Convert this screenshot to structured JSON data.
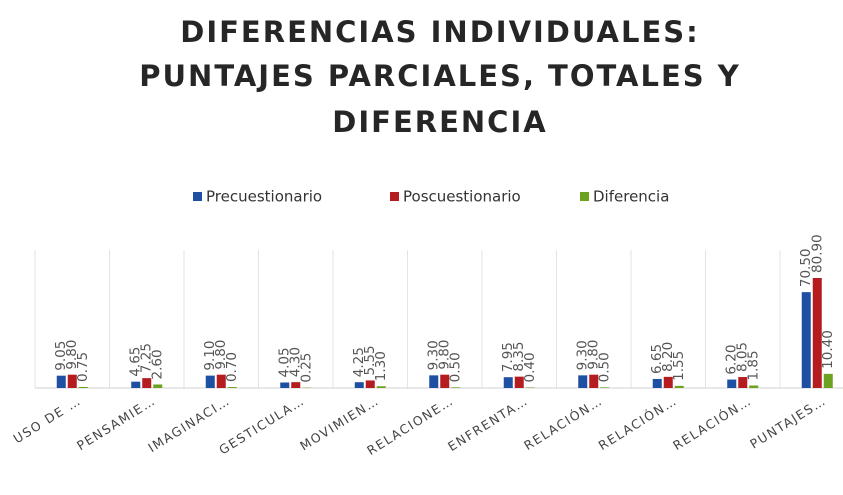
{
  "chart_data": {
    "type": "bar",
    "title": [
      "DIFERENCIAS INDIVIDUALES:",
      "PUNTAJES PARCIALES, TOTALES Y",
      "DIFERENCIA"
    ],
    "categories": [
      "USO DE …",
      "PENSAMIE…",
      "IMAGINACI…",
      "GESTICULA…",
      "MOVIMIEN…",
      "RELACIONE…",
      "ENFRENTA…",
      "RELACIÓN…",
      "RELACIÓN…",
      "RELACIÓN…",
      "PUNTAJES…"
    ],
    "series": [
      {
        "name": "Precuestionario",
        "color": "#1d4fa3",
        "values": [
          9.05,
          4.65,
          9.1,
          4.05,
          4.25,
          9.3,
          7.95,
          9.3,
          6.65,
          6.2,
          70.5
        ],
        "value_labels": [
          "9.05",
          "4.65",
          "9.10",
          "4.05",
          "4.25",
          "9.30",
          "7.95",
          "9.30",
          "6.65",
          "6.20",
          "70.50"
        ]
      },
      {
        "name": "Poscuestionario",
        "color": "#b51c1f",
        "values": [
          9.8,
          7.25,
          9.8,
          4.3,
          5.55,
          9.8,
          8.35,
          9.8,
          8.2,
          8.05,
          80.9
        ],
        "value_labels": [
          "9.80",
          "7.25",
          "9.80",
          "4.30",
          "5.55",
          "9.80",
          "8.35",
          "9.80",
          "8.20",
          "8.05",
          "80.90"
        ]
      },
      {
        "name": "Diferencia",
        "color": "#6ca21f",
        "values": [
          0.75,
          2.6,
          0.7,
          0.25,
          1.3,
          0.5,
          0.4,
          0.5,
          1.55,
          1.85,
          10.4
        ],
        "value_labels": [
          "0.75",
          "2.60",
          "0.70",
          "0.25",
          "1.30",
          "0.50",
          "0.40",
          "0.50",
          "1.55",
          "1.85",
          "10.40"
        ]
      }
    ]
  }
}
